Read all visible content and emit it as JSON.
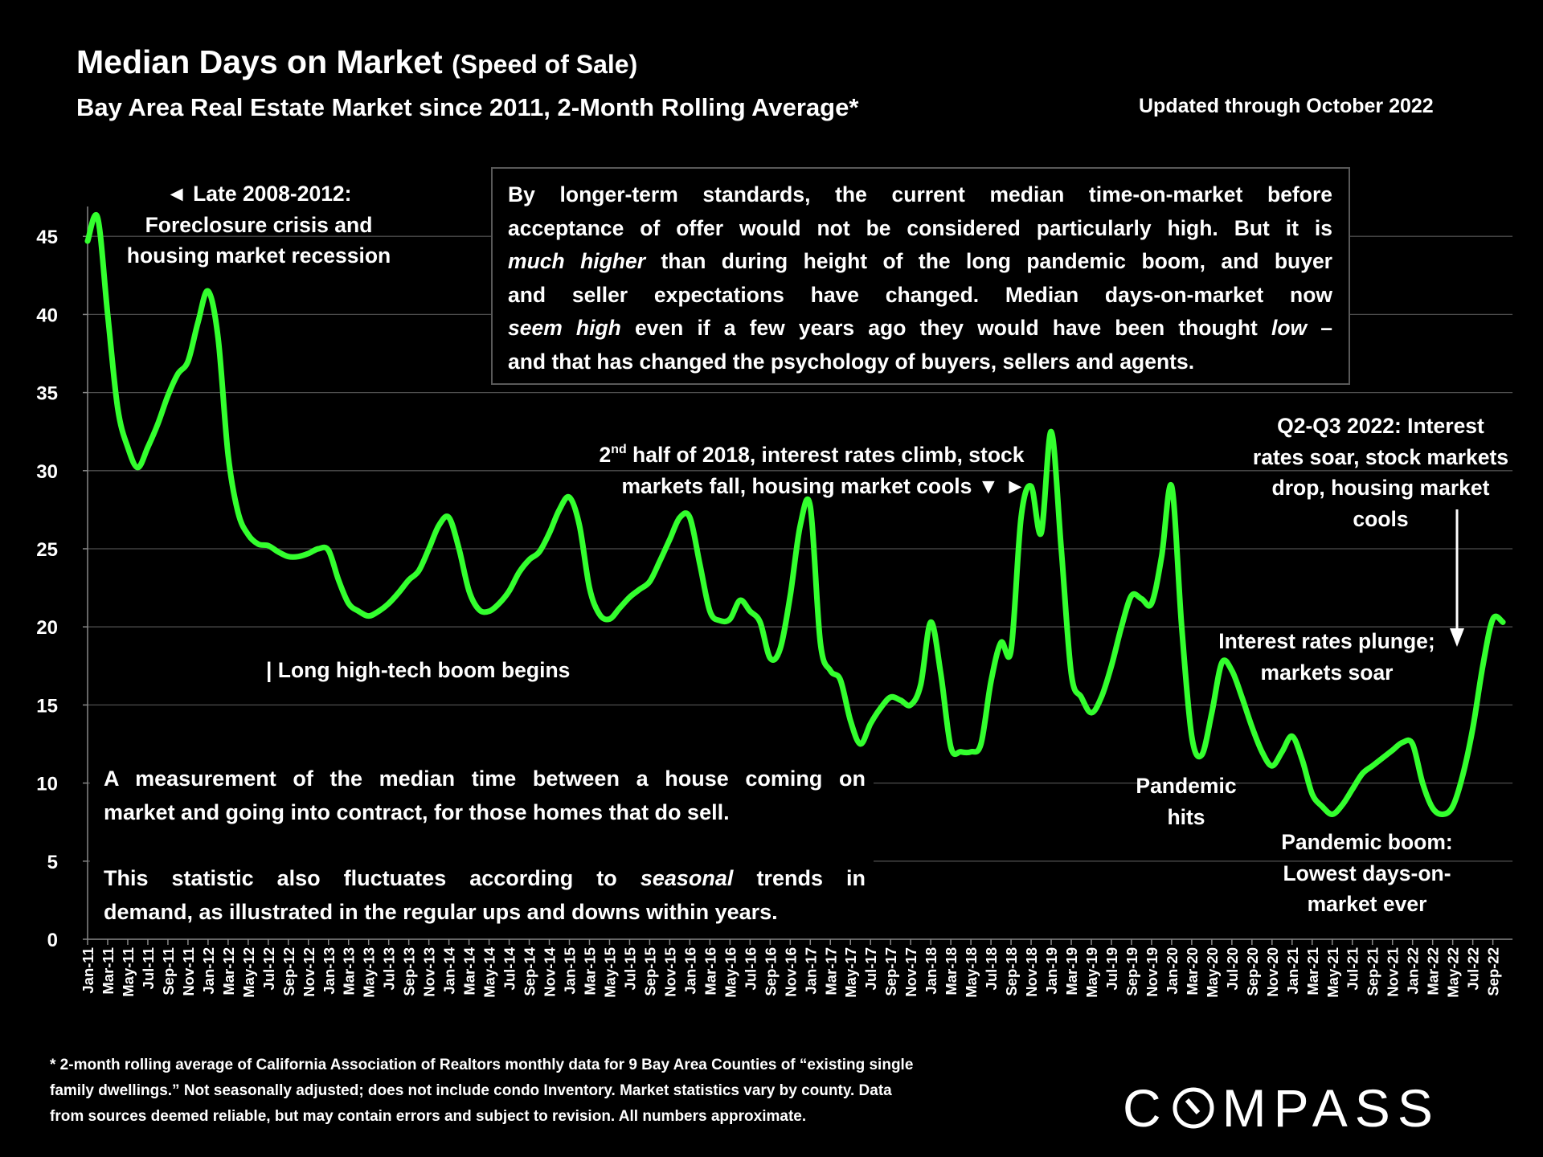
{
  "header": {
    "title": "Median Days on Market",
    "title_paren": "(Speed of Sale)",
    "subtitle": "Bay Area Real Estate Market since 2011, 2-Month Rolling Average*",
    "updated": "Updated through October 2022"
  },
  "note_box": {
    "lines": [
      [
        {
          "t": "By longer-term standards, the current median time-on-market before",
          "i": false
        }
      ],
      [
        {
          "t": "acceptance of offer would not be considered particularly high. But it is",
          "i": false
        }
      ],
      [
        {
          "t": "much higher",
          "i": true
        },
        {
          "t": " than during height of the long pandemic boom, and buyer",
          "i": false
        }
      ],
      [
        {
          "t": "and seller expectations have changed. Median days-on-market now",
          "i": false
        }
      ],
      [
        {
          "t": "seem high",
          "i": true
        },
        {
          "t": " even if a few years ago they would have been thought ",
          "i": false
        },
        {
          "t": "low",
          "i": true
        },
        {
          "t": " –",
          "i": false
        }
      ],
      [
        {
          "t": "and that has changed the psychology of buyers, sellers and agents.",
          "i": false
        }
      ]
    ]
  },
  "annotations": {
    "recession": [
      "◄ Late 2008-2012:",
      "Foreclosure crisis and",
      "housing market recession"
    ],
    "tech_boom": "| Long high-tech boom begins",
    "h2_2018_line1_pre": "2",
    "h2_2018_sup": "nd",
    "h2_2018_line1_post": " half of 2018, interest rates climb, stock",
    "h2_2018_line2": "markets fall, housing market cools ▼ ►",
    "q2q3_2022": [
      "Q2-Q3 2022: Interest",
      "rates soar, stock markets",
      "drop, housing market",
      "cools"
    ],
    "rates_plunge": [
      "Interest rates plunge;",
      "markets soar"
    ],
    "pandemic_hits": [
      "Pandemic",
      "hits"
    ],
    "pandemic_boom": [
      "Pandemic boom:",
      "Lowest days-on-",
      "market ever"
    ]
  },
  "description": {
    "p1": [
      "A measurement of the median time between a house coming on",
      "market and going into contract, for those homes that do sell."
    ],
    "p2_line1": [
      {
        "t": "This statistic also fluctuates according to ",
        "i": false
      },
      {
        "t": "seasonal",
        "i": true
      },
      {
        "t": " trends in",
        "i": false
      }
    ],
    "p2_line2": "demand, as illustrated in the regular ups and downs within years."
  },
  "footnote": [
    "* 2-month rolling average of California Association of Realtors monthly data for 9 Bay Area Counties of “existing single",
    "family dwellings.” Not seasonally adjusted; does not include condo Inventory. Market statistics vary by county. Data",
    "from sources deemed reliable, but may contain errors and subject to revision. All numbers approximate."
  ],
  "logo": {
    "text": "COMPASS",
    "pre": "C",
    "post": "MPASS"
  },
  "colors": {
    "line": "#33ff2e",
    "grid": "#4d4d4d",
    "background": "#000000",
    "text": "#ffffff"
  },
  "chart_data": {
    "type": "line",
    "title": "Median Days on Market (Speed of Sale)",
    "xlabel": "",
    "ylabel": "",
    "ylim": [
      0,
      45
    ],
    "yticks": [
      0,
      5,
      10,
      15,
      20,
      25,
      30,
      35,
      40,
      45
    ],
    "grid": true,
    "x_start": "Jan-11",
    "x_end": "Oct-22",
    "x_frequency": "monthly",
    "xtick_labels": [
      "Jan-11",
      "Mar-11",
      "May-11",
      "Jul-11",
      "Sep-11",
      "Nov-11",
      "Jan-12",
      "Mar-12",
      "May-12",
      "Jul-12",
      "Sep-12",
      "Nov-12",
      "Jan-13",
      "Mar-13",
      "May-13",
      "Jul-13",
      "Sep-13",
      "Nov-13",
      "Jan-14",
      "Mar-14",
      "May-14",
      "Jul-14",
      "Sep-14",
      "Nov-14",
      "Jan-15",
      "Mar-15",
      "May-15",
      "Jul-15",
      "Sep-15",
      "Nov-15",
      "Jan-16",
      "Mar-16",
      "May-16",
      "Jul-16",
      "Sep-16",
      "Nov-16",
      "Jan-17",
      "Mar-17",
      "May-17",
      "Jul-17",
      "Sep-17",
      "Nov-17",
      "Jan-18",
      "Mar-18",
      "May-18",
      "Jul-18",
      "Sep-18",
      "Nov-18",
      "Jan-19",
      "Mar-19",
      "May-19",
      "Jul-19",
      "Sep-19",
      "Nov-19",
      "Jan-20",
      "Mar-20",
      "May-20",
      "Jul-20",
      "Sep-20",
      "Nov-20",
      "Jan-21",
      "Mar-21",
      "May-21",
      "Jul-21",
      "Sep-21",
      "Nov-21",
      "Jan-22",
      "Mar-22",
      "May-22",
      "Jul-22",
      "Sep-22"
    ],
    "series": [
      {
        "name": "Median Days on Market",
        "values": [
          44.7,
          46.2,
          40,
          34,
          31.5,
          30.2,
          31.5,
          33,
          34.8,
          36.2,
          37,
          39.5,
          41.5,
          38.5,
          31,
          27.3,
          25.9,
          25.3,
          25.2,
          24.8,
          24.5,
          24.5,
          24.7,
          25,
          24.9,
          23,
          21.5,
          21,
          20.7,
          21,
          21.5,
          22.2,
          23,
          23.6,
          25,
          26.5,
          27,
          25,
          22.3,
          21.1,
          21,
          21.5,
          22.3,
          23.5,
          24.3,
          24.8,
          26,
          27.5,
          28.3,
          26.5,
          22.5,
          20.8,
          20.5,
          21.2,
          21.9,
          22.4,
          22.9,
          24.2,
          25.6,
          27,
          27,
          24,
          21,
          20.4,
          20.5,
          21.7,
          21,
          20.3,
          18,
          18.6,
          22,
          26.5,
          27.7,
          19,
          17.2,
          16.6,
          14,
          12.5,
          13.8,
          14.8,
          15.5,
          15.3,
          15,
          16.3,
          20.3,
          17,
          12.3,
          12,
          12,
          12.5,
          16.5,
          19,
          18.5,
          27,
          29,
          26,
          32.5,
          25,
          17,
          15.5,
          14.5,
          15.5,
          17.5,
          20,
          22,
          21.8,
          21.5,
          24.5,
          29,
          20,
          13,
          11.8,
          14.5,
          17.7,
          17.2,
          15.5,
          13.6,
          12,
          11.1,
          12,
          13,
          11.5,
          9.3,
          8.5,
          8,
          8.6,
          9.6,
          10.6,
          11.1,
          11.6,
          12.1,
          12.6,
          12.5,
          10,
          8.4,
          8,
          8.5,
          10.5,
          13.5,
          17.5,
          20.5,
          20.3
        ]
      }
    ]
  }
}
